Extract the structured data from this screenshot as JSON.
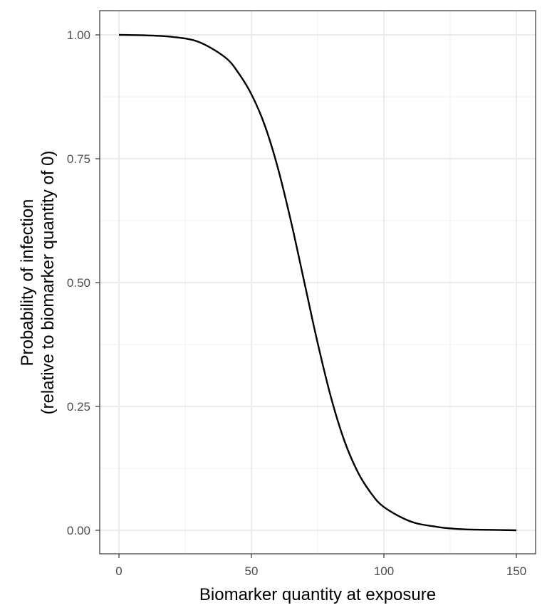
{
  "chart_data": {
    "type": "line",
    "title": "",
    "xlabel": "Biomarker quantity at exposure",
    "ylabel_line1": "Probability of infection",
    "ylabel_line2": "(relative to biomarker quantity of 0)",
    "xlim": [
      0,
      150
    ],
    "ylim": [
      0,
      1
    ],
    "x_ticks": [
      0,
      50,
      100,
      150
    ],
    "x_tick_labels": [
      "0",
      "50",
      "100",
      "150"
    ],
    "y_ticks": [
      0,
      0.25,
      0.5,
      0.75,
      1
    ],
    "y_tick_labels": [
      "0.00",
      "0.25",
      "0.50",
      "0.75",
      "1.00"
    ],
    "grid": true,
    "legend": "none",
    "series": [
      {
        "color": "#000000",
        "x": [
          0,
          10,
          20,
          30,
          40,
          45,
          50,
          55,
          60,
          65,
          70,
          75,
          80,
          85,
          90,
          95,
          100,
          110,
          120,
          130,
          140,
          150
        ],
        "y": [
          1.0,
          0.999,
          0.996,
          0.986,
          0.955,
          0.924,
          0.88,
          0.818,
          0.731,
          0.622,
          0.5,
          0.378,
          0.269,
          0.182,
          0.119,
          0.076,
          0.047,
          0.018,
          0.007,
          0.002,
          0.001,
          0.0
        ]
      }
    ]
  }
}
